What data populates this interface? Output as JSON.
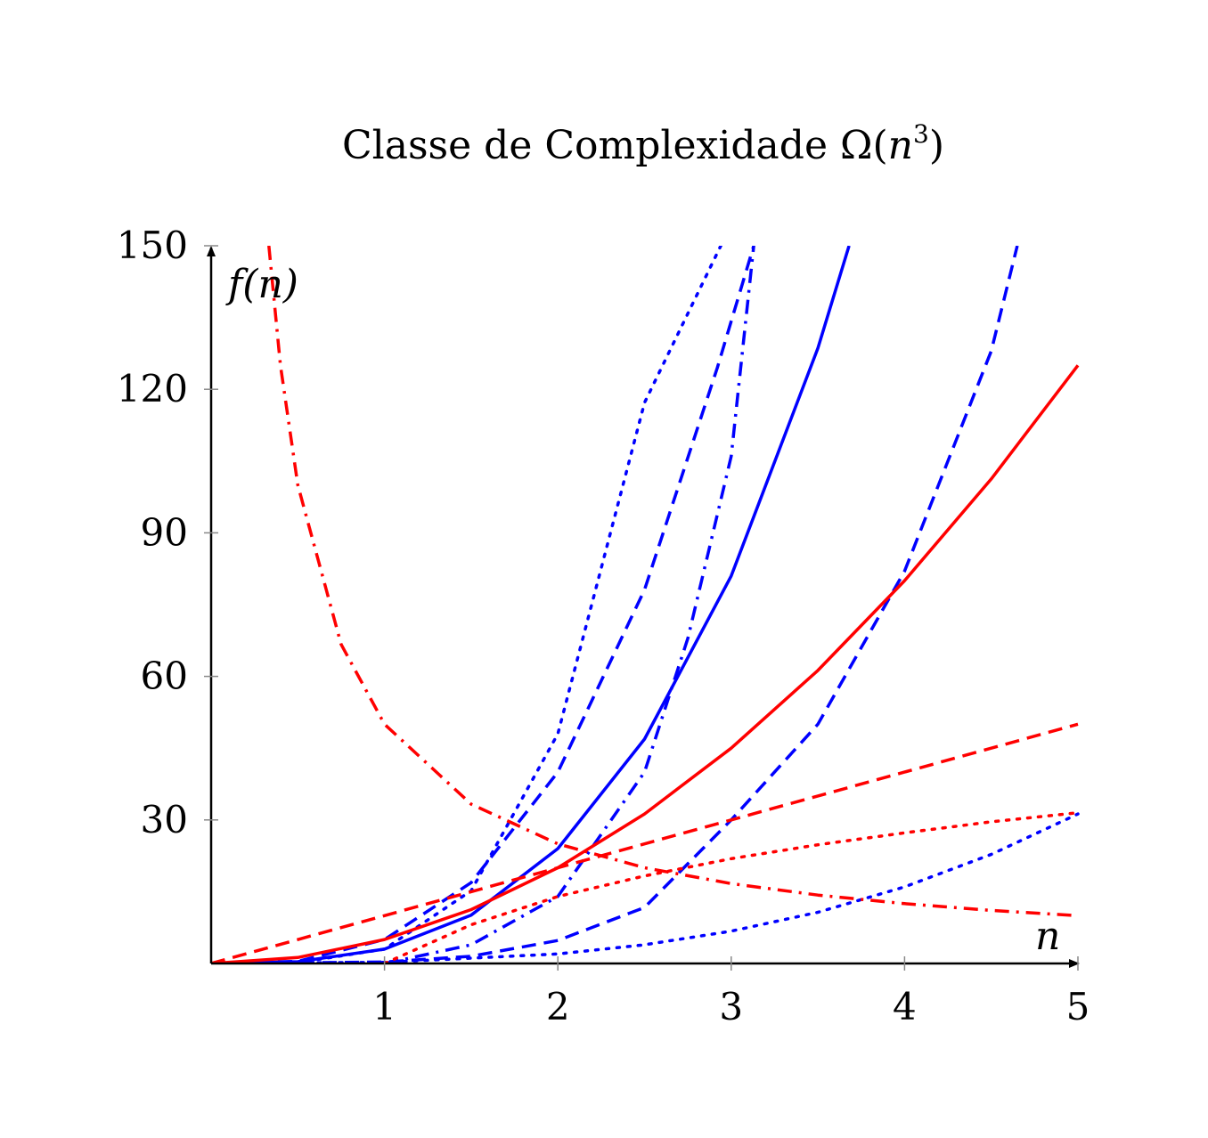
{
  "chart_data": {
    "type": "line",
    "title": "Classe de Complexidade Ω(n³)",
    "title_parts": {
      "main": "Classe de Complexidade Ω(",
      "var": "n",
      "exp": "3",
      "close": ")"
    },
    "xlabel": "n",
    "ylabel": "f(n)",
    "xlim": [
      0,
      5
    ],
    "ylim": [
      0,
      150
    ],
    "xticks": [
      "1",
      "2",
      "3",
      "4",
      "5"
    ],
    "yticks": [
      "30",
      "60",
      "90",
      "120",
      "150"
    ],
    "grid": false,
    "legend": "none",
    "colors": {
      "blue": "#0000ff",
      "red": "#ff0000",
      "axis": "#000000"
    },
    "series": [
      {
        "color": "#0000ff",
        "style": "solid",
        "points": [
          [
            0,
            0
          ],
          [
            0.5,
            0.38
          ],
          [
            1,
            3
          ],
          [
            1.5,
            10.1
          ],
          [
            2,
            24
          ],
          [
            2.5,
            46.9
          ],
          [
            3,
            81
          ],
          [
            3.5,
            128.6
          ],
          [
            3.68,
            150
          ]
        ]
      },
      {
        "color": "#0000ff",
        "style": "dashed",
        "points": [
          [
            0,
            0
          ],
          [
            0.5,
            0.44
          ],
          [
            1,
            5
          ],
          [
            1.5,
            16.9
          ],
          [
            2,
            40
          ],
          [
            2.5,
            78.1
          ],
          [
            2.92,
            124.5
          ],
          [
            3.13,
            150
          ]
        ]
      },
      {
        "color": "#0000ff",
        "style": "dotted",
        "points": [
          [
            0,
            0
          ],
          [
            0.5,
            0.19
          ],
          [
            1,
            3
          ],
          [
            1.5,
            15.2
          ],
          [
            2,
            48
          ],
          [
            2.5,
            117.2
          ],
          [
            2.94,
            150
          ]
        ]
      },
      {
        "color": "#0000ff",
        "style": "dashdot",
        "points": [
          [
            1,
            0
          ],
          [
            1.5,
            3.9
          ],
          [
            2,
            14
          ],
          [
            2.5,
            40
          ],
          [
            2.75,
            68
          ],
          [
            3,
            106
          ],
          [
            3.13,
            150
          ]
        ]
      },
      {
        "color": "#0000ff",
        "style": "dashed",
        "points": [
          [
            0,
            0
          ],
          [
            1,
            0.3
          ],
          [
            1.5,
            1.5
          ],
          [
            2,
            4.8
          ],
          [
            2.5,
            11.7
          ],
          [
            3,
            30
          ],
          [
            3.5,
            50
          ],
          [
            4,
            82
          ],
          [
            4.5,
            128
          ],
          [
            4.65,
            150
          ]
        ]
      },
      {
        "color": "#0000ff",
        "style": "dotted",
        "points": [
          [
            0,
            0
          ],
          [
            1,
            0.25
          ],
          [
            2,
            2
          ],
          [
            2.5,
            3.9
          ],
          [
            3,
            6.75
          ],
          [
            3.5,
            10.7
          ],
          [
            4,
            16
          ],
          [
            4.5,
            22.8
          ],
          [
            5,
            31.25
          ]
        ]
      },
      {
        "color": "#ff0000",
        "style": "solid",
        "points": [
          [
            0,
            0
          ],
          [
            0.5,
            1.25
          ],
          [
            1,
            5
          ],
          [
            1.5,
            11.25
          ],
          [
            2,
            20
          ],
          [
            2.5,
            31.25
          ],
          [
            3,
            45
          ],
          [
            3.5,
            61.25
          ],
          [
            4,
            80
          ],
          [
            4.5,
            101.25
          ],
          [
            5,
            125
          ]
        ]
      },
      {
        "color": "#ff0000",
        "style": "dashed",
        "points": [
          [
            0,
            0
          ],
          [
            5,
            50
          ]
        ]
      },
      {
        "color": "#ff0000",
        "style": "dotted",
        "points": [
          [
            1,
            0
          ],
          [
            1.5,
            8.1
          ],
          [
            2,
            14
          ],
          [
            2.5,
            18.3
          ],
          [
            3,
            21.9
          ],
          [
            3.5,
            24.8
          ],
          [
            4,
            27.3
          ],
          [
            4.5,
            29.6
          ],
          [
            5,
            31.5
          ]
        ]
      },
      {
        "color": "#ff0000",
        "style": "dashdot",
        "points": [
          [
            0.333,
            150
          ],
          [
            0.4,
            125
          ],
          [
            0.5,
            100
          ],
          [
            0.75,
            66.7
          ],
          [
            1,
            50
          ],
          [
            1.5,
            33.3
          ],
          [
            2,
            25
          ],
          [
            2.5,
            20
          ],
          [
            3,
            16.7
          ],
          [
            3.5,
            14.3
          ],
          [
            4,
            12.5
          ],
          [
            4.5,
            11.1
          ],
          [
            5,
            10
          ]
        ]
      }
    ]
  }
}
